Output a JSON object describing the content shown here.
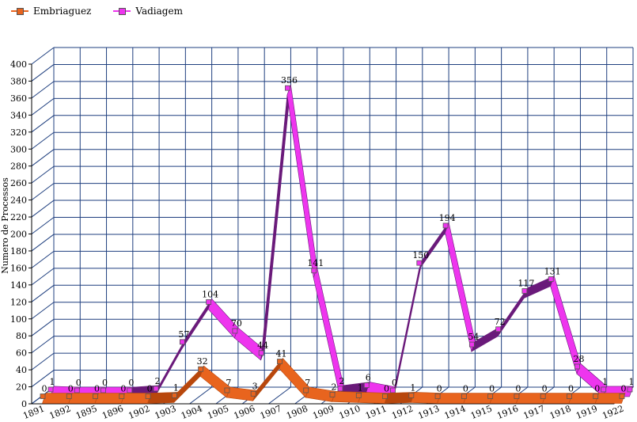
{
  "chart_data": {
    "type": "line",
    "title": "",
    "ylabel": "Numero de Processos",
    "xlabel": "",
    "ylim": [
      0,
      400
    ],
    "ytick_step": 20,
    "grid": true,
    "legend_position": "top-left",
    "categories": [
      "1891",
      "1892",
      "1895",
      "1896",
      "1902",
      "1903",
      "1904",
      "1905",
      "1906",
      "1907",
      "1908",
      "1909",
      "1910",
      "1911",
      "1912",
      "1913",
      "1914",
      "1915",
      "1916",
      "1917",
      "1918",
      "1919",
      "1922"
    ],
    "series": [
      {
        "name": "Embriaguez",
        "color": "#e8641e",
        "dark": "#b8470c",
        "values": [
          0,
          0,
          0,
          0,
          0,
          1,
          32,
          7,
          3,
          41,
          7,
          2,
          1,
          0,
          1,
          0,
          0,
          0,
          0,
          0,
          0,
          0,
          0
        ]
      },
      {
        "name": "Vadiagem",
        "color": "#ee35ee",
        "dark": "#6a1a7a",
        "values": [
          1,
          0,
          0,
          0,
          2,
          57,
          104,
          70,
          44,
          356,
          141,
          2,
          6,
          0,
          150,
          194,
          54,
          72,
          117,
          131,
          28,
          1,
          1
        ]
      }
    ]
  }
}
